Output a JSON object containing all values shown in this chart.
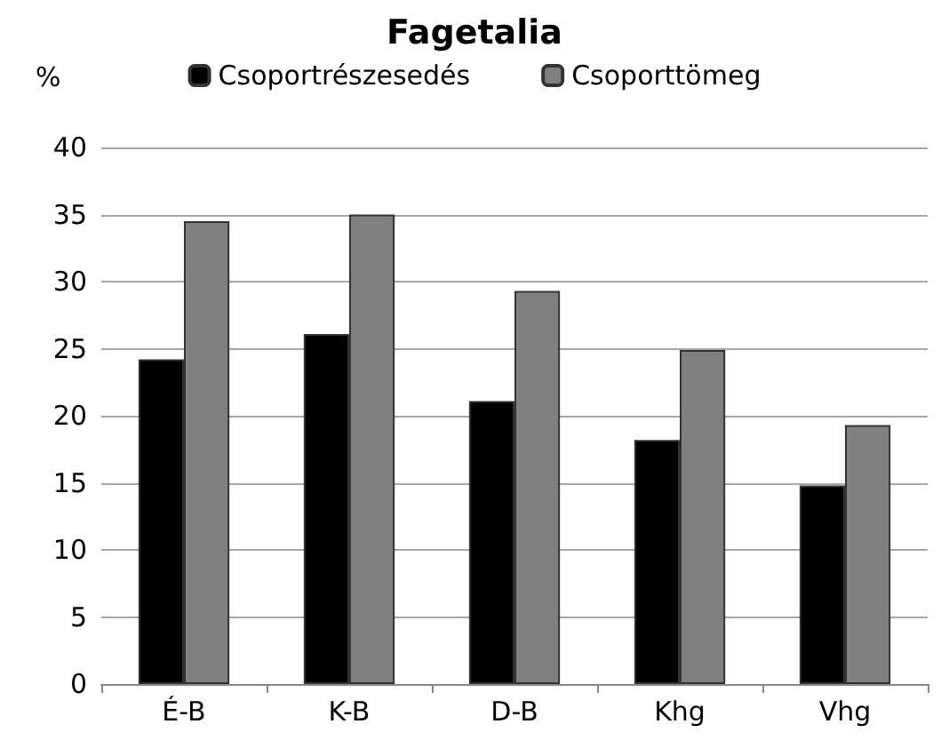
{
  "chart_data": {
    "type": "bar",
    "title": "Fagetalia",
    "ylabel": "%",
    "categories": [
      "É-B",
      "K-B",
      "D-B",
      "Khg",
      "Vhg"
    ],
    "series": [
      {
        "name": "Csoportrészesedés",
        "color": "#000000",
        "values": [
          24.2,
          26.1,
          21.1,
          18.2,
          14.8
        ]
      },
      {
        "name": "Csoporttömeg",
        "color": "#808080",
        "values": [
          34.5,
          35,
          29.3,
          24.9,
          19.3
        ]
      }
    ],
    "ylim": [
      0,
      40
    ],
    "yticks": [
      0,
      5,
      10,
      15,
      20,
      25,
      30,
      35,
      40
    ],
    "grid": "y",
    "legend": "top"
  }
}
